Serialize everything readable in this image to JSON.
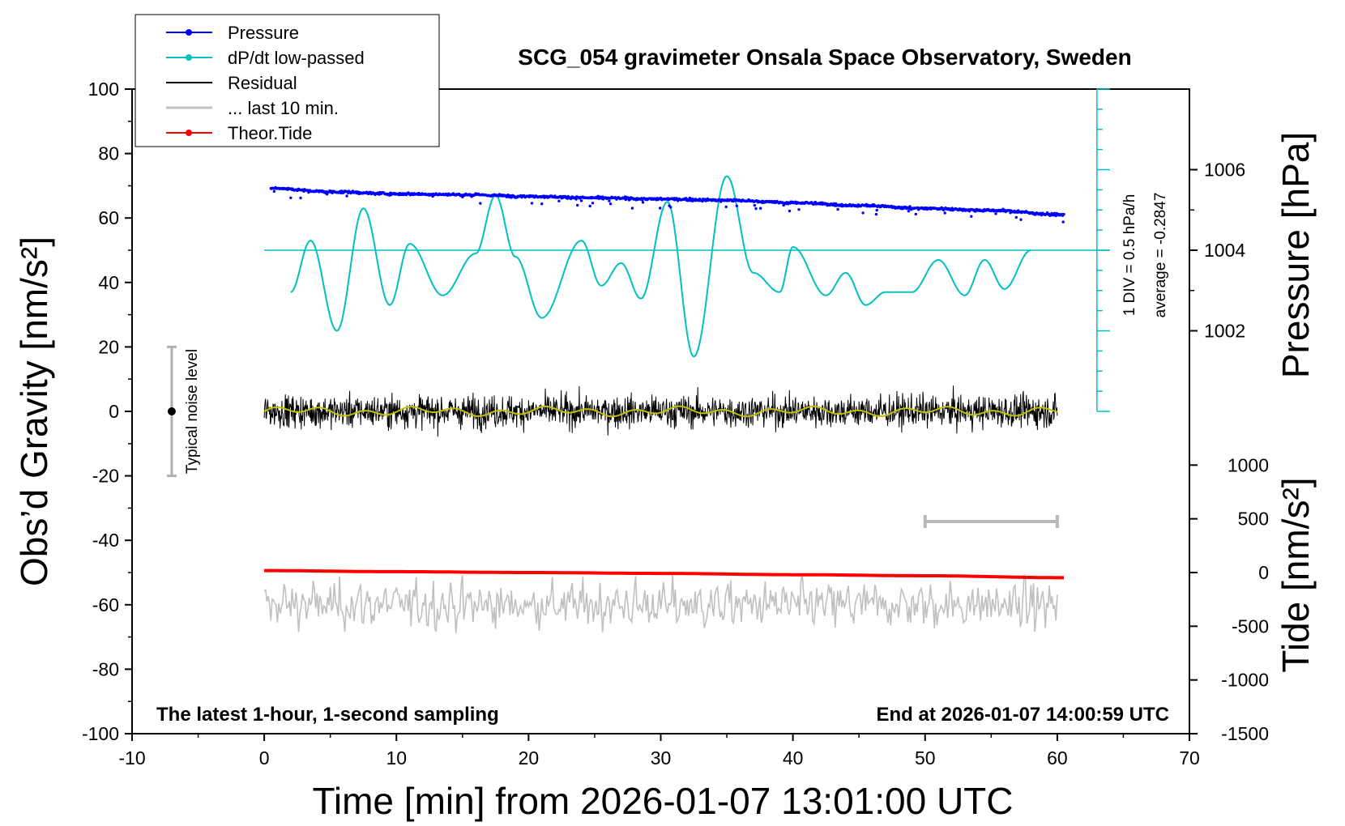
{
  "chart_data": {
    "type": "line",
    "title": "SCG_054 gravimeter Onsala Space Observatory, Sweden",
    "xlabel": "Time [min] from 2026-01-07 13:01:00 UTC",
    "ylabel_left": "Obs’d Gravity [nm/s²]",
    "ylabel_right_top": "Pressure [hPa]",
    "ylabel_right_bottom": "Tide [nm/s²]",
    "xlim": [
      -10,
      70
    ],
    "ylim": [
      -100,
      100
    ],
    "x_ticks": [
      "-10",
      "0",
      "10",
      "20",
      "30",
      "40",
      "50",
      "60",
      "70"
    ],
    "y_ticks": [
      "-100",
      "-80",
      "-60",
      "-40",
      "-20",
      "0",
      "20",
      "40",
      "60",
      "80",
      "100"
    ],
    "pressure_ticks": [
      "1002",
      "1004",
      "1006"
    ],
    "tide_ticks": [
      "-1500",
      "-1000",
      "-500",
      "0",
      "500",
      "1000"
    ],
    "annotation_left": "The latest 1-hour, 1-second sampling",
    "annotation_right": "End at 2026-01-07 14:00:59 UTC",
    "noise_label": "Typical noise level",
    "dpdt_scale_label": "1 DIV = 0.5 hPa/h",
    "dpdt_average_label": "average = -0.2847",
    "legend_placement": "top-left",
    "grid": false,
    "legend": [
      {
        "name": "Pressure",
        "color": "#0000ff",
        "style": "dots"
      },
      {
        "name": "dP/dt low-passed",
        "color": "#00c0c0",
        "style": "line-dot"
      },
      {
        "name": "Residual",
        "color": "#000000",
        "style": "line"
      },
      {
        "name": "... last 10 min.",
        "color": "#c0c0c0",
        "style": "line"
      },
      {
        "name": "Theor.Tide",
        "color": "#ff0000",
        "style": "line-dot"
      }
    ],
    "series": [
      {
        "name": "Pressure",
        "unit": "hPa",
        "color": "#0000ff",
        "x": [
          0.5,
          5,
          10,
          15,
          20,
          25,
          30,
          35,
          40,
          45,
          50,
          55,
          60.5
        ],
        "values": [
          1005.54,
          1005.45,
          1005.4,
          1005.38,
          1005.34,
          1005.3,
          1005.27,
          1005.24,
          1005.18,
          1005.11,
          1005.04,
          1004.99,
          1004.88
        ]
      },
      {
        "name": "dP/dt low-passed",
        "unit": "nm/s² (plot scale)",
        "color": "#00c0c0",
        "x": [
          2,
          3.5,
          5.5,
          7.5,
          9.5,
          11,
          13.5,
          16,
          17.5,
          19,
          21,
          24,
          25.5,
          27,
          28.5,
          30.5,
          32.5,
          35,
          37,
          39,
          40,
          42.5,
          44,
          45.5,
          47,
          49,
          51,
          53,
          54.5,
          56,
          58
        ],
        "values": [
          37,
          53,
          25,
          63,
          33,
          52,
          36,
          49,
          67,
          48,
          29,
          53,
          39,
          46,
          35,
          65,
          17,
          73,
          43,
          37,
          51,
          36,
          43,
          33,
          37,
          37,
          47,
          36,
          47,
          38,
          50
        ]
      },
      {
        "name": "Residual",
        "unit": "nm/s²",
        "color": "#000000",
        "x": [
          0,
          60
        ],
        "envelope": [
          -10,
          12
        ],
        "low_passed_mean": 0
      },
      {
        "name": "... last 10 min.",
        "unit": "nm/s²",
        "color": "#c0c0c0",
        "x": [
          0,
          60
        ],
        "offset": -60,
        "envelope": [
          -76,
          -48
        ]
      },
      {
        "name": "Theor.Tide",
        "unit": "nm/s²",
        "color": "#ff0000",
        "x": [
          0,
          10,
          20,
          30,
          40,
          50,
          60.5
        ],
        "values": [
          18,
          8,
          0,
          -8,
          -20,
          -30,
          -48
        ]
      }
    ],
    "noise_bar": {
      "x": -7,
      "center": 0,
      "range": [
        -20,
        20
      ]
    },
    "last10_bar": {
      "x": [
        50,
        60
      ]
    }
  }
}
